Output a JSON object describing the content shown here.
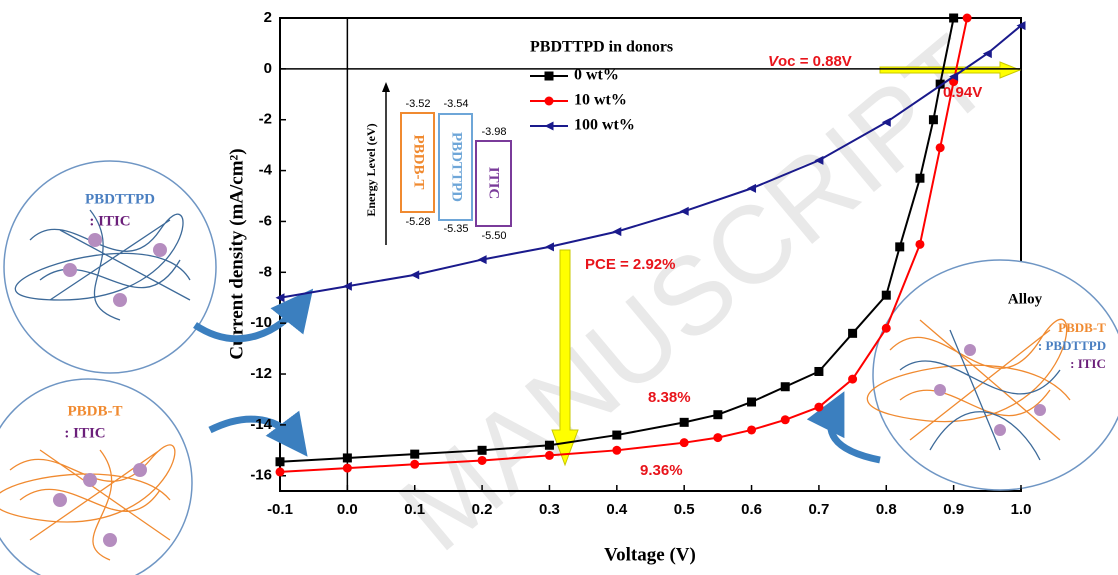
{
  "chart_data": {
    "type": "line",
    "x_label": "Voltage (V)",
    "y_label": "Current density (mA/cm²)",
    "legend_title": "PBDTTPD in donors",
    "xlim": [
      -0.1,
      1.0
    ],
    "xticks": [
      -0.1,
      {
        "value": 0,
        "label": "0.0"
      },
      0.1,
      0.2,
      0.3,
      0.4,
      0.5,
      0.6,
      0.7,
      0.8,
      0.9,
      {
        "value": 1,
        "label": "1.0"
      }
    ],
    "ylim": [
      -16.6,
      2
    ],
    "yticks": [
      2,
      0,
      -2,
      -4,
      -6,
      -8,
      -10,
      -12,
      -14,
      -16
    ],
    "series": [
      {
        "name": "0 wt%",
        "color": "#000000",
        "marker": "square",
        "x": [
          -0.1,
          0,
          0.1,
          0.2,
          0.3,
          0.4,
          0.5,
          0.55,
          0.6,
          0.65,
          0.7,
          0.75,
          0.8,
          0.82,
          0.85,
          0.87,
          0.88,
          0.9
        ],
        "values": [
          -15.45,
          -15.3,
          -15.15,
          -15.0,
          -14.8,
          -14.4,
          -13.9,
          -13.6,
          -13.1,
          -12.5,
          -11.9,
          -10.4,
          -8.9,
          -7.0,
          -4.3,
          -2.0,
          -0.6,
          2.0
        ]
      },
      {
        "name": "10 wt%",
        "color": "#ff0000",
        "marker": "circle",
        "x": [
          -0.1,
          0,
          0.1,
          0.2,
          0.3,
          0.4,
          0.5,
          0.55,
          0.6,
          0.65,
          0.7,
          0.75,
          0.8,
          0.85,
          0.88,
          0.9,
          0.92
        ],
        "values": [
          -15.85,
          -15.7,
          -15.55,
          -15.4,
          -15.2,
          -15.0,
          -14.7,
          -14.5,
          -14.2,
          -13.8,
          -13.3,
          -12.2,
          -10.2,
          -6.9,
          -3.1,
          -0.5,
          2.0
        ]
      },
      {
        "name": "100 wt%",
        "color": "#1a1a8c",
        "marker": "triangle-left",
        "x": [
          -0.1,
          0,
          0.1,
          0.2,
          0.3,
          0.4,
          0.5,
          0.6,
          0.7,
          0.8,
          0.9,
          0.95,
          1.0
        ],
        "values": [
          -9.0,
          -8.55,
          -8.1,
          -7.5,
          -7.0,
          -6.4,
          -5.6,
          -4.7,
          -3.6,
          -2.1,
          -0.3,
          0.6,
          1.7
        ]
      }
    ],
    "annotations": {
      "voc_prefix": "V",
      "voc": "oc = 0.88V",
      "voc2": "0.94V",
      "pce": "PCE = 2.92%",
      "pce0": "8.38%",
      "pce10": "9.36%"
    },
    "inset": {
      "axis_label": "Energy Level (eV)",
      "materials": [
        {
          "name": "PBDB-T",
          "lumo": "-3.52",
          "homo": "-5.28"
        },
        {
          "name": "PBDTTPD",
          "lumo": "-3.54",
          "homo": "-5.35"
        },
        {
          "name": "ITIC",
          "lumo": "-3.98",
          "homo": "-5.50"
        }
      ]
    },
    "morphologies": {
      "top": {
        "donor": "PBDTTPD",
        "acceptor": ": ITIC"
      },
      "bottom": {
        "donor": "PBDB-T",
        "acceptor": ": ITIC"
      },
      "right": {
        "title": "Alloy",
        "donor1": "PBDB-T",
        "donor2": ": PBDTTPD",
        "acceptor": ": ITIC"
      }
    },
    "watermark": "MANUSCRIPT"
  }
}
